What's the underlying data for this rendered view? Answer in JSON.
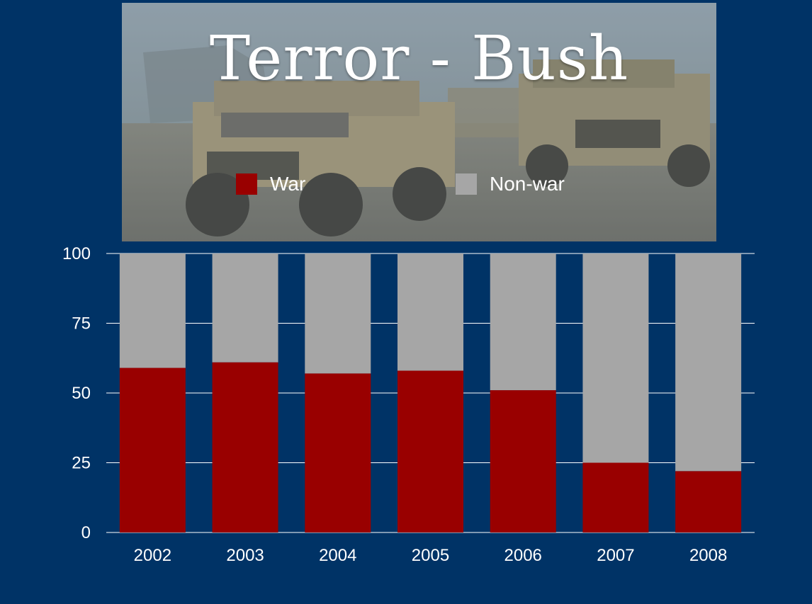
{
  "slide": {
    "title": "Terror - Bush"
  },
  "photo": {
    "icon": "military-humvees-photo"
  },
  "colors": {
    "background": "#003366",
    "war": "#990000",
    "non_war": "#a6a6a6",
    "gridline": "#ffffff"
  },
  "chart_data": {
    "type": "bar",
    "stacked": true,
    "title": "Terror - Bush",
    "xlabel": "",
    "ylabel": "",
    "categories": [
      "2002",
      "2003",
      "2004",
      "2005",
      "2006",
      "2007",
      "2008"
    ],
    "series": [
      {
        "name": "War",
        "values": [
          59,
          61,
          57,
          58,
          51,
          25,
          22
        ]
      },
      {
        "name": "Non-war",
        "values": [
          41,
          39,
          43,
          42,
          49,
          75,
          78
        ]
      }
    ],
    "ylim": [
      0,
      100
    ],
    "yticks": [
      "0",
      "25",
      "50",
      "75",
      "100"
    ],
    "grid": true,
    "legend_position": "top"
  }
}
